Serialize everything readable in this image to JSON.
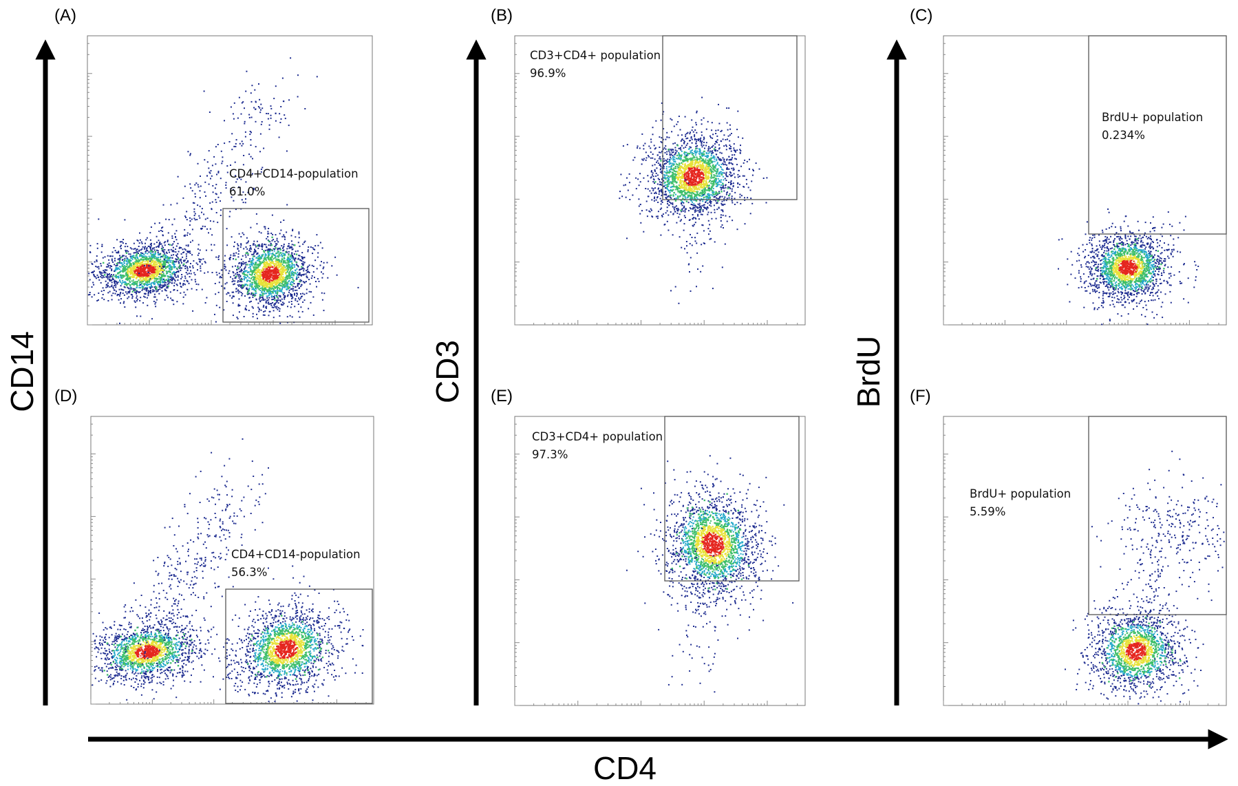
{
  "figure": {
    "x_axis_title": "CD4",
    "y_axis_titles": [
      "CD14",
      "CD3",
      "BrdU"
    ]
  },
  "chart_data": [
    {
      "type": "scatter",
      "panel": "(A)",
      "xlabel": "CD4",
      "ylabel": "CD14",
      "x_scale": "log",
      "y_scale": "log",
      "gate": {
        "name": "CD4+CD14-population",
        "percent": "61.0%"
      },
      "populations": [
        {
          "role": "CD4-CD14low"
        },
        {
          "role": "CD4+CD14- (gated)"
        },
        {
          "role": "CD14+ tail"
        }
      ]
    },
    {
      "type": "scatter",
      "panel": "(B)",
      "xlabel": "CD4",
      "ylabel": "CD3",
      "x_scale": "log",
      "y_scale": "log",
      "gate": {
        "name": "CD3+CD4+ population",
        "percent": "96.9%"
      },
      "populations": [
        {
          "role": "CD3+CD4+ (gated)"
        }
      ]
    },
    {
      "type": "scatter",
      "panel": "(C)",
      "xlabel": "CD4",
      "ylabel": "BrdU",
      "x_scale": "log",
      "y_scale": "log",
      "gate": {
        "name": "BrdU+ population",
        "percent": "0.234%"
      },
      "populations": [
        {
          "role": "BrdU- CD4+"
        }
      ]
    },
    {
      "type": "scatter",
      "panel": "(D)",
      "xlabel": "CD4",
      "ylabel": "CD14",
      "x_scale": "log",
      "y_scale": "log",
      "gate": {
        "name": "CD4+CD14-population",
        "percent": "56.3%"
      },
      "populations": [
        {
          "role": "CD4-CD14low"
        },
        {
          "role": "CD4+CD14- (gated)"
        },
        {
          "role": "CD14+ tail"
        }
      ]
    },
    {
      "type": "scatter",
      "panel": "(E)",
      "xlabel": "CD4",
      "ylabel": "CD3",
      "x_scale": "log",
      "y_scale": "log",
      "gate": {
        "name": "CD3+CD4+ population",
        "percent": "97.3%"
      },
      "populations": [
        {
          "role": "CD3+CD4+ (gated)"
        }
      ]
    },
    {
      "type": "scatter",
      "panel": "(F)",
      "xlabel": "CD4",
      "ylabel": "BrdU",
      "x_scale": "log",
      "y_scale": "log",
      "gate": {
        "name": "BrdU+ population",
        "percent": "5.59%"
      },
      "populations": [
        {
          "role": "BrdU- CD4+"
        },
        {
          "role": "BrdU+ CD4+"
        }
      ]
    }
  ],
  "colors": {
    "density_low": "#1b2a8f",
    "density_mid": "#22a7c9",
    "density_midhigh": "#3fbf6a",
    "density_high": "#e8e23a",
    "density_peak": "#e5261f",
    "gate": "#555555",
    "axis": "#000000"
  }
}
